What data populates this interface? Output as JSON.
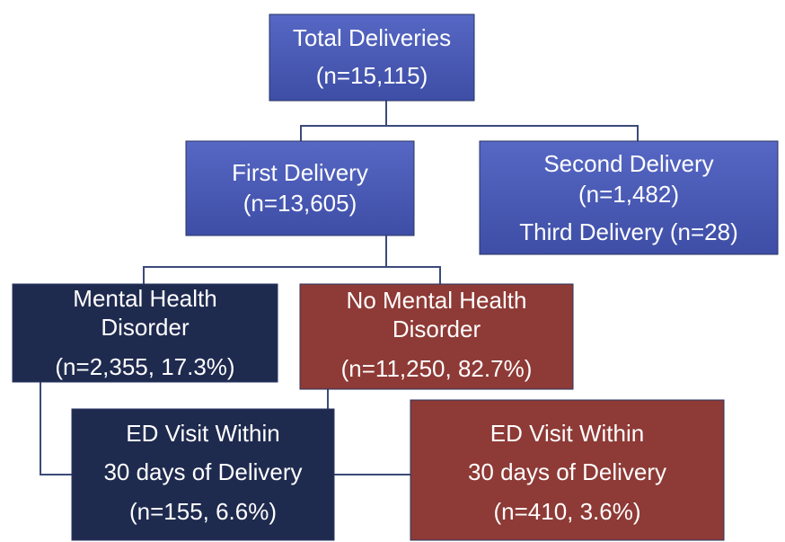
{
  "nodes": [
    {
      "lines": [
        "Total Deliveries",
        "(n=15,115)"
      ]
    },
    {
      "lines": [
        "First Delivery",
        "(n=13,605)"
      ]
    },
    {
      "lines": [
        "Second Delivery",
        "(n=1,482)",
        "Third Delivery (n=28)"
      ]
    },
    {
      "lines": [
        "Mental Health",
        "Disorder",
        "(n=2,355, 17.3%)"
      ]
    },
    {
      "lines": [
        "No Mental Health",
        "Disorder",
        "(n=11,250, 82.7%)"
      ]
    },
    {
      "lines": [
        "ED Visit Within",
        "30 days of Delivery",
        "(n=155, 6.6%)"
      ]
    },
    {
      "lines": [
        "ED Visit Within",
        "30 days of Delivery",
        "(n=410, 3.6%)"
      ]
    }
  ]
}
